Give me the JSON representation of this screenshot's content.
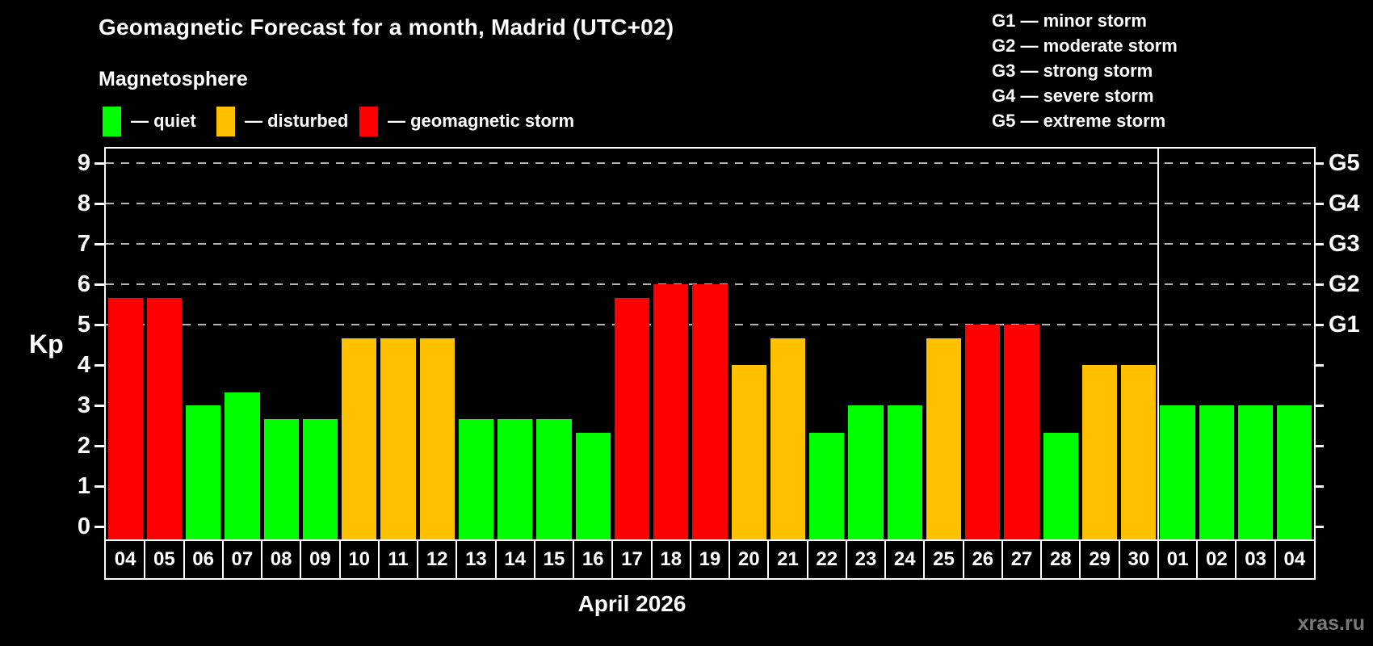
{
  "title": "Geomagnetic Forecast for a month, Madrid (UTC+02)",
  "subtitle": "Magnetosphere",
  "legend": {
    "items": [
      {
        "status": "quiet",
        "label": "— quiet",
        "color": "#00ff00"
      },
      {
        "status": "disturbed",
        "label": "— disturbed",
        "color": "#ffc000"
      },
      {
        "status": "storm",
        "label": "— geomagnetic storm",
        "color": "#ff0000"
      }
    ]
  },
  "g_legend": [
    "G1 — minor storm",
    "G2 — moderate storm",
    "G3 — strong storm",
    "G4 — severe storm",
    "G5 — extreme storm"
  ],
  "watermark": "xras.ru",
  "chart_data": {
    "type": "bar",
    "title": "Geomagnetic Forecast for a month, Madrid (UTC+02)",
    "xlabel": "April 2026",
    "ylabel": "Kp",
    "ylim": [
      0,
      9
    ],
    "y_ticks": [
      0,
      1,
      2,
      3,
      4,
      5,
      6,
      7,
      8,
      9
    ],
    "gridlines_at": [
      5,
      6,
      7,
      8,
      9
    ],
    "grid": true,
    "right_axis_labels": [
      {
        "value": 5,
        "label": "G1"
      },
      {
        "value": 6,
        "label": "G2"
      },
      {
        "value": 7,
        "label": "G3"
      },
      {
        "value": 8,
        "label": "G4"
      },
      {
        "value": 9,
        "label": "G5"
      }
    ],
    "categories": [
      "04",
      "05",
      "06",
      "07",
      "08",
      "09",
      "10",
      "11",
      "12",
      "13",
      "14",
      "15",
      "16",
      "17",
      "18",
      "19",
      "20",
      "21",
      "22",
      "23",
      "24",
      "25",
      "26",
      "27",
      "28",
      "29",
      "30",
      "01",
      "02",
      "03",
      "04"
    ],
    "values": [
      5.67,
      5.67,
      3,
      3.33,
      2.67,
      2.67,
      4.67,
      4.67,
      4.67,
      2.67,
      2.67,
      2.67,
      2.33,
      5.67,
      6,
      6,
      4,
      4.67,
      2.33,
      3,
      3,
      4.67,
      5,
      5,
      2.33,
      4,
      4,
      3,
      3,
      3,
      3
    ],
    "statuses": [
      "storm",
      "storm",
      "quiet",
      "quiet",
      "quiet",
      "quiet",
      "disturbed",
      "disturbed",
      "disturbed",
      "quiet",
      "quiet",
      "quiet",
      "quiet",
      "storm",
      "storm",
      "storm",
      "disturbed",
      "disturbed",
      "quiet",
      "quiet",
      "quiet",
      "disturbed",
      "storm",
      "storm",
      "quiet",
      "disturbed",
      "disturbed",
      "quiet",
      "quiet",
      "quiet",
      "quiet"
    ],
    "status_colors": {
      "quiet": "#00ff00",
      "disturbed": "#ffc000",
      "storm": "#ff0000"
    },
    "april_slot_count": 27
  }
}
